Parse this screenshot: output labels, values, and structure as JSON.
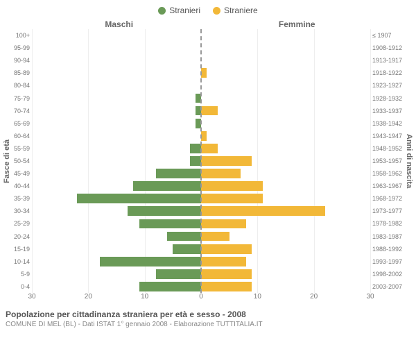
{
  "type": "population-pyramid",
  "legend": {
    "male": {
      "label": "Stranieri",
      "color": "#6a9a57"
    },
    "female": {
      "label": "Straniere",
      "color": "#f2b838"
    }
  },
  "headers": {
    "male": "Maschi",
    "female": "Femmine"
  },
  "yAxisLabels": {
    "left": "Fasce di età",
    "right": "Anni di nascita"
  },
  "ageBands": [
    "100+",
    "95-99",
    "90-94",
    "85-89",
    "80-84",
    "75-79",
    "70-74",
    "65-69",
    "60-64",
    "55-59",
    "50-54",
    "45-49",
    "40-44",
    "35-39",
    "30-34",
    "25-29",
    "20-24",
    "15-19",
    "10-14",
    "5-9",
    "0-4"
  ],
  "birthYears": [
    "≤ 1907",
    "1908-1912",
    "1913-1917",
    "1918-1922",
    "1923-1927",
    "1928-1932",
    "1933-1937",
    "1938-1942",
    "1943-1947",
    "1948-1952",
    "1953-1957",
    "1958-1962",
    "1963-1967",
    "1968-1972",
    "1973-1977",
    "1978-1982",
    "1983-1987",
    "1988-1992",
    "1993-1997",
    "1998-2002",
    "2003-2007"
  ],
  "male": [
    0,
    0,
    0,
    0,
    0,
    1,
    1,
    1,
    0,
    2,
    2,
    8,
    12,
    22,
    13,
    11,
    6,
    5,
    18,
    8,
    11
  ],
  "female": [
    0,
    0,
    0,
    1,
    0,
    0,
    3,
    0,
    1,
    3,
    9,
    7,
    11,
    11,
    22,
    8,
    5,
    9,
    8,
    9,
    9
  ],
  "xAxis": {
    "max": 30,
    "ticks": [
      30,
      20,
      10,
      0,
      10,
      20,
      30
    ]
  },
  "colors": {
    "male": "#6a9a57",
    "female": "#f2b838",
    "grid": "#eeeeee",
    "centerLine": "#999999",
    "text": "#666666",
    "background": "#ffffff"
  },
  "style": {
    "barHeightFraction": 0.76,
    "tickFontSize": 9,
    "legendFontSize": 12,
    "headerFontSize": 12,
    "captionTitleFontSize": 12,
    "captionSubFontSize": 10
  },
  "caption": {
    "title": "Popolazione per cittadinanza straniera per età e sesso - 2008",
    "subtitle": "COMUNE DI MEL (BL) - Dati ISTAT 1° gennaio 2008 - Elaborazione TUTTITALIA.IT"
  }
}
